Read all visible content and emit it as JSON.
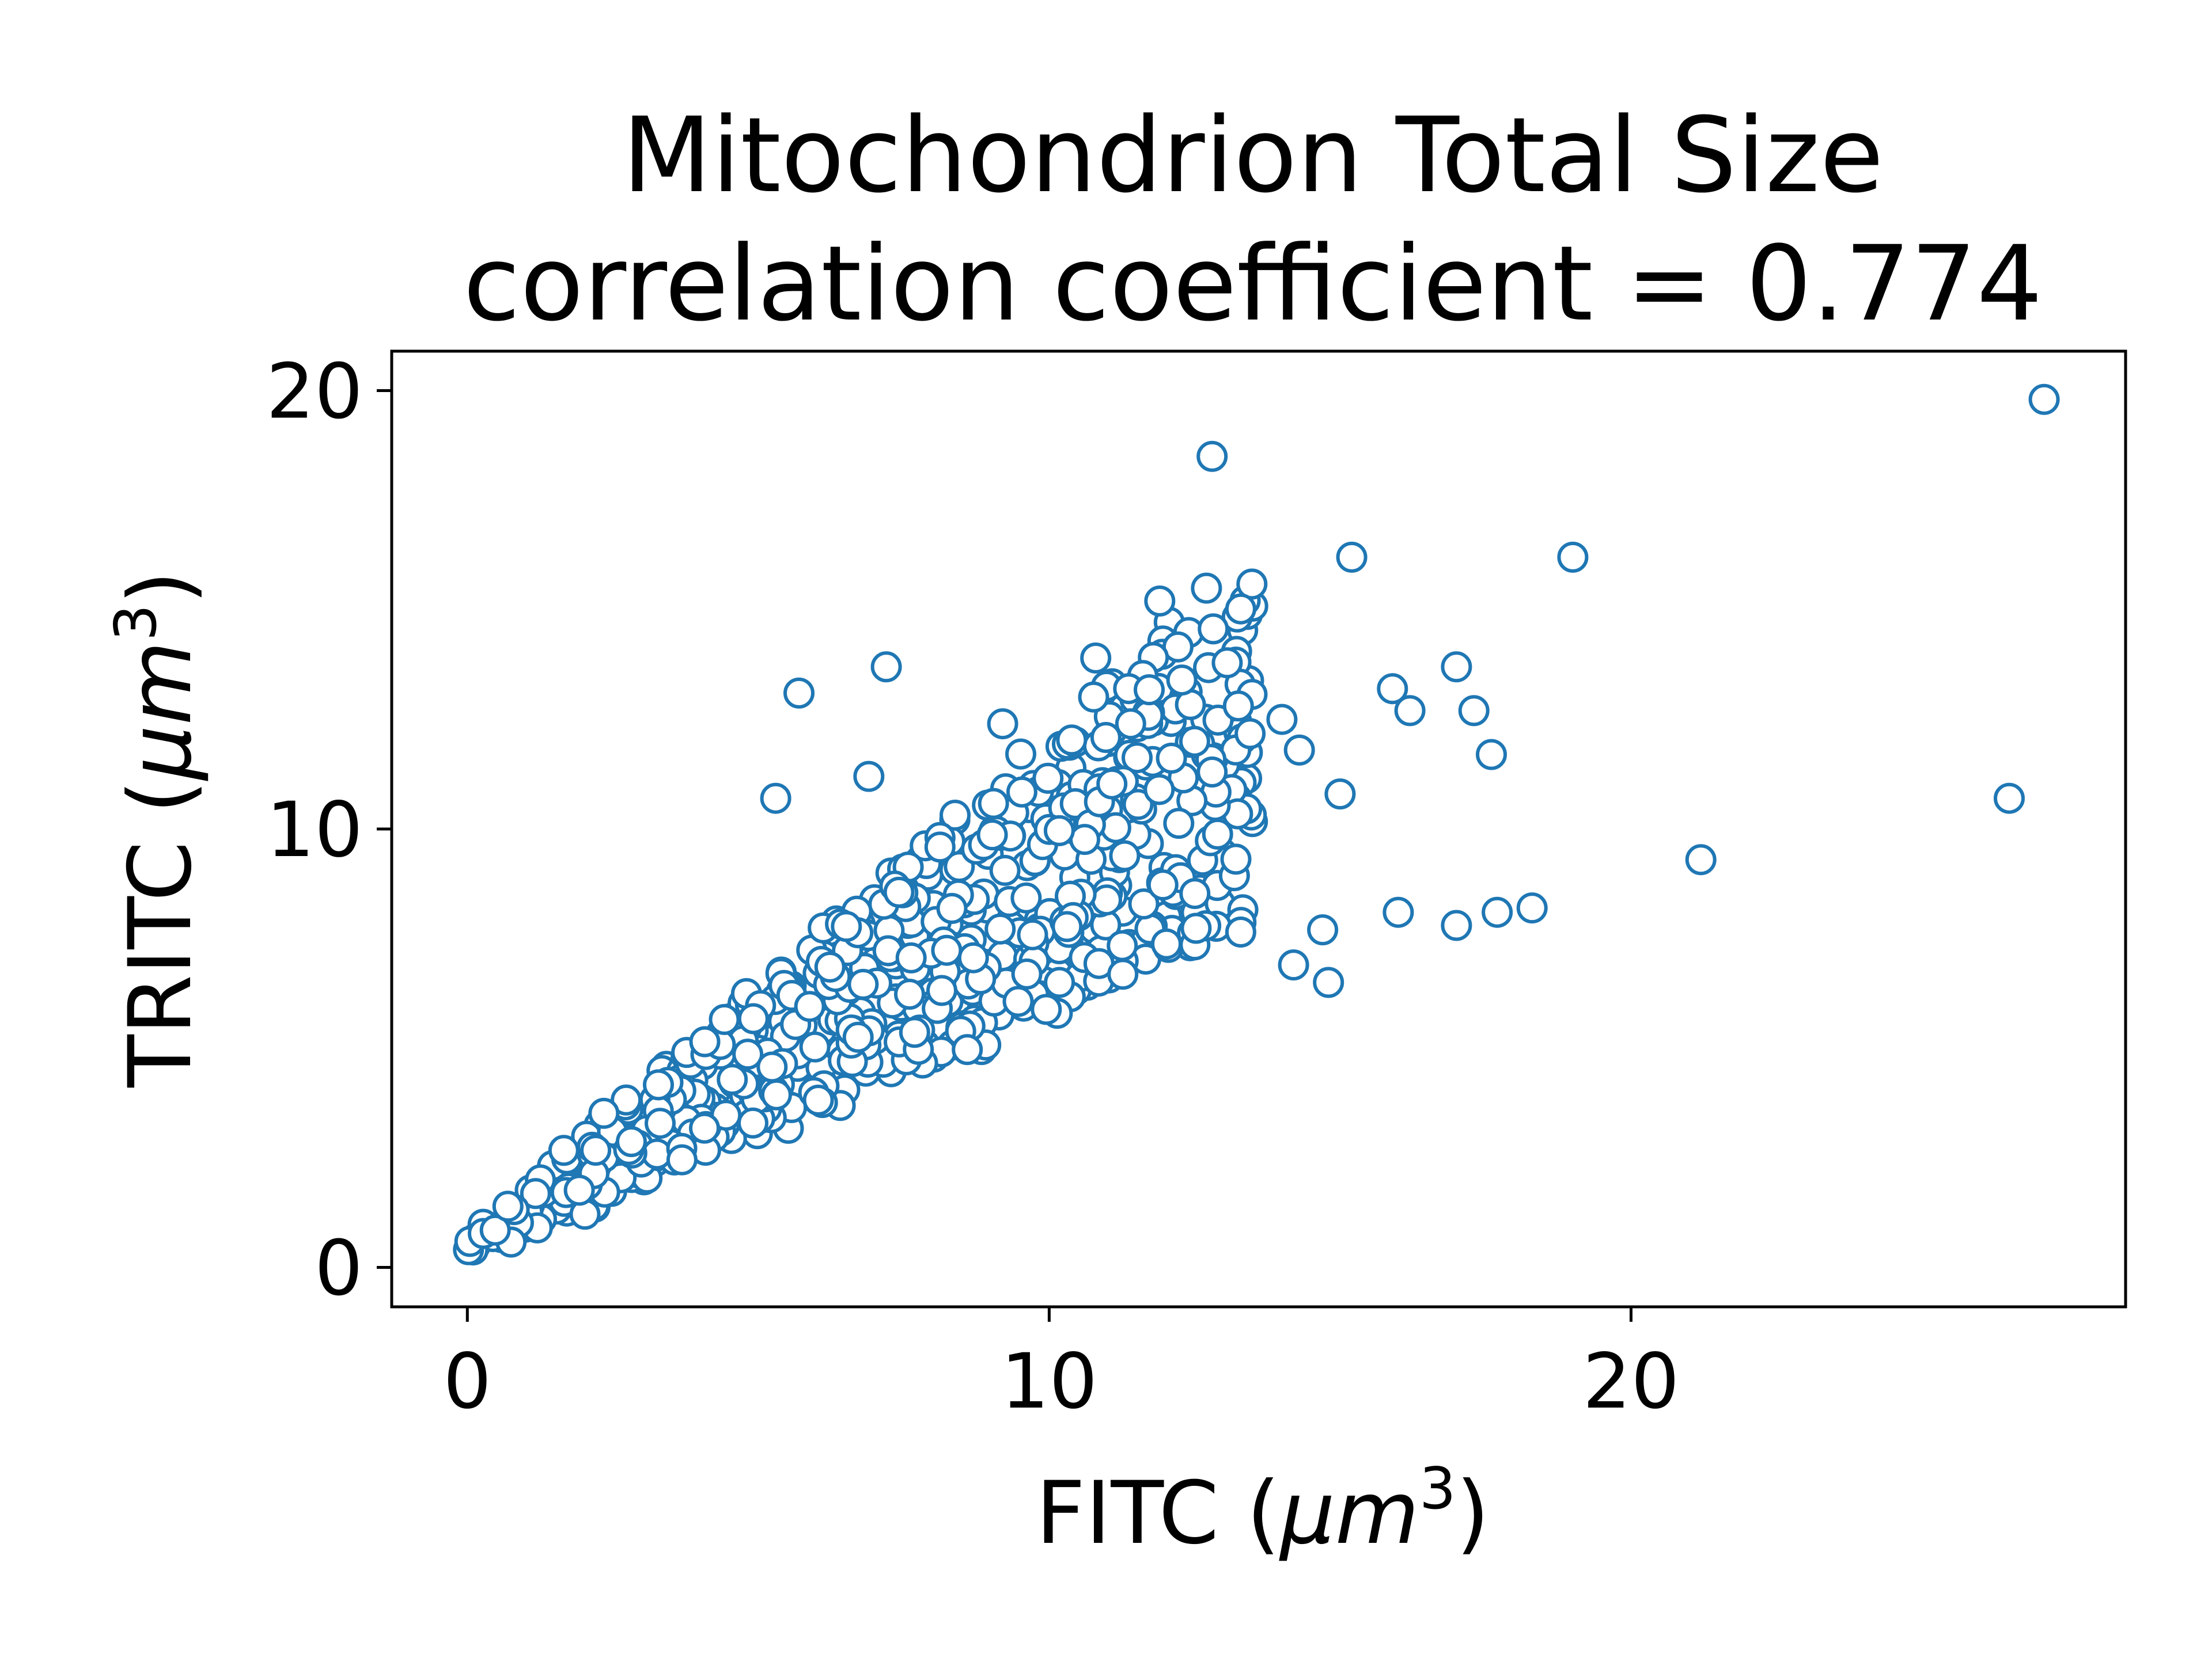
{
  "chart_data": {
    "type": "scatter",
    "title": [
      "Mitochondrion Total Size",
      "correlation coefficient = 0.774"
    ],
    "xlabel": {
      "prefix": "FITC (",
      "unit": "μm",
      "sup": "3",
      "suffix": ")"
    },
    "ylabel": {
      "prefix": "TRITC (",
      "unit": "μm",
      "sup": "3",
      "suffix": ")"
    },
    "xlim": [
      -1.3,
      28.5
    ],
    "ylim": [
      -0.9,
      20.9
    ],
    "xticks": [
      0,
      10,
      20
    ],
    "yticks": [
      0,
      10,
      20
    ],
    "xtick_labels": [
      "0",
      "10",
      "20"
    ],
    "ytick_labels": [
      "0",
      "10",
      "20"
    ],
    "marker": "open-circle",
    "colors": {
      "marker_edge": "#1f77b4",
      "marker_face": "#ffffff",
      "axes": "#000000",
      "text": "#000000"
    },
    "outliers": {
      "x": [
        27.1,
        12.8,
        15.2,
        19.0,
        11.9,
        10.8,
        7.2,
        5.7,
        9.2,
        17.0,
        15.9,
        16.2,
        17.3,
        17.6,
        26.5,
        21.2,
        18.3,
        17.7,
        17.0,
        16.0,
        14.7,
        14.8,
        14.2,
        11.4,
        12.5,
        14.0,
        14.3,
        15.0,
        12.8,
        6.9,
        5.3
      ],
      "y": [
        19.8,
        18.5,
        16.2,
        16.2,
        15.2,
        13.9,
        13.7,
        13.1,
        12.4,
        13.7,
        13.2,
        12.7,
        12.7,
        11.7,
        10.7,
        9.3,
        8.2,
        8.1,
        7.8,
        8.1,
        7.7,
        6.5,
        6.9,
        12.4,
        12.0,
        12.5,
        11.8,
        10.8,
        11.3,
        11.2,
        10.7
      ]
    },
    "bulk": {
      "count": 700,
      "x_range": [
        0.0,
        13.5
      ],
      "trend_slope": 0.82,
      "trend_intercept": 0.4,
      "spread_low": 0.68,
      "spread_high": 1.42,
      "seed": 7741
    }
  }
}
